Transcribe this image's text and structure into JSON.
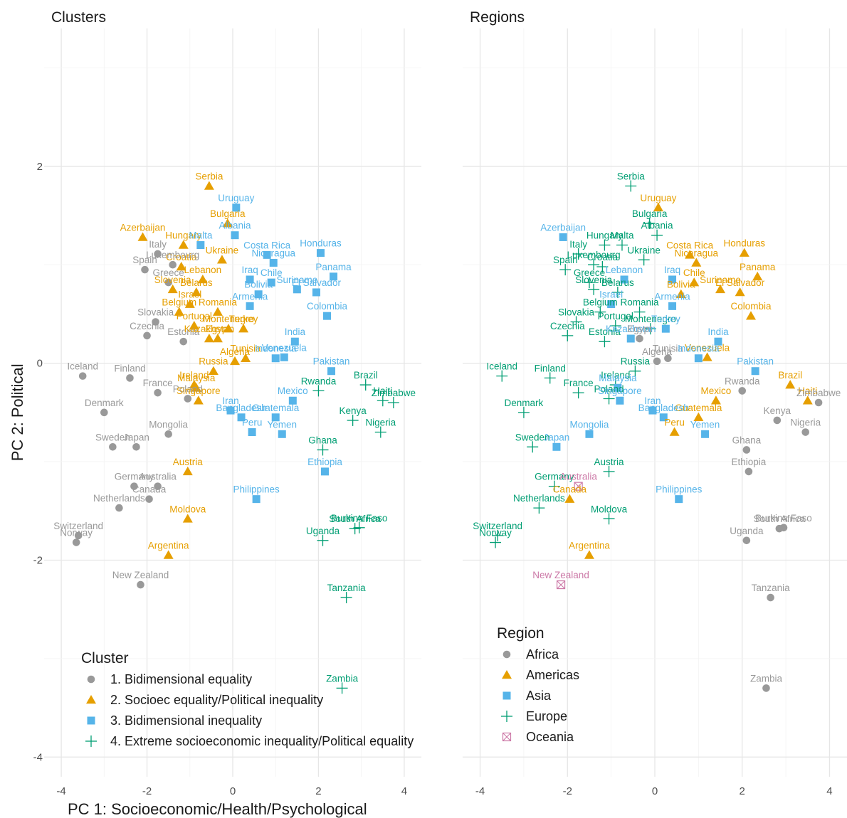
{
  "colors": {
    "Africa": "#999999",
    "Americas": "#E69F00",
    "Asia": "#56B4E9",
    "Europe": "#009E73",
    "Oceania": "#CC79A7",
    "c1": "#999999",
    "c2": "#E69F00",
    "c3": "#56B4E9",
    "c4": "#009E73"
  },
  "chart_data": [
    {
      "type": "scatter",
      "title": "Clusters",
      "xlabel": "PC 1: Socioeconomic/Health/Psychological",
      "ylabel": "PC 2: Political",
      "xlim": [
        -4.4,
        4.4
      ],
      "ylim": [
        -4.2,
        3.4
      ],
      "xticks": [
        "-4",
        "-2",
        "0",
        "2",
        "4"
      ],
      "yticks": [
        "2",
        "0",
        "-2",
        "-4"
      ],
      "grid": true,
      "legend": {
        "title": "Cluster",
        "placement": "bottom-left",
        "entries": [
          {
            "key": "c1",
            "label": "1. Bidimensional equality"
          },
          {
            "key": "c2",
            "label": "2. Socioec equality/Political inequality"
          },
          {
            "key": "c3",
            "label": "3. Bidimensional inequality"
          },
          {
            "key": "c4",
            "label": "4. Extreme socioeconomic inequality/Political equality"
          }
        ]
      }
    },
    {
      "type": "scatter",
      "title": "Regions",
      "xlabel": "",
      "ylabel": "",
      "xlim": [
        -4.4,
        4.4
      ],
      "ylim": [
        -4.2,
        3.4
      ],
      "xticks": [
        "-4",
        "-2",
        "0",
        "2",
        "4"
      ],
      "yticks": [],
      "grid": true,
      "legend": {
        "title": "Region",
        "placement": "bottom-left",
        "entries": [
          {
            "key": "Africa",
            "label": "Africa"
          },
          {
            "key": "Americas",
            "label": "Americas"
          },
          {
            "key": "Asia",
            "label": "Asia"
          },
          {
            "key": "Europe",
            "label": "Europe"
          },
          {
            "key": "Oceania",
            "label": "Oceania"
          }
        ]
      }
    }
  ],
  "points": [
    {
      "name": "Serbia",
      "x": -0.55,
      "y": 1.8,
      "cluster": "c2",
      "region": "Europe"
    },
    {
      "name": "Uruguay",
      "x": 0.08,
      "y": 1.58,
      "cluster": "c3",
      "region": "Americas"
    },
    {
      "name": "Bulgaria",
      "x": -0.12,
      "y": 1.42,
      "cluster": "c2",
      "region": "Europe"
    },
    {
      "name": "Albania",
      "x": 0.05,
      "y": 1.3,
      "cluster": "c3",
      "region": "Europe"
    },
    {
      "name": "Azerbaijan",
      "x": -2.1,
      "y": 1.28,
      "cluster": "c2",
      "region": "Asia"
    },
    {
      "name": "Hungary",
      "x": -1.15,
      "y": 1.2,
      "cluster": "c2",
      "region": "Europe"
    },
    {
      "name": "Malta",
      "x": -0.75,
      "y": 1.2,
      "cluster": "c3",
      "region": "Europe"
    },
    {
      "name": "Costa Rica",
      "x": 0.8,
      "y": 1.1,
      "cluster": "c3",
      "region": "Americas"
    },
    {
      "name": "Honduras",
      "x": 2.05,
      "y": 1.12,
      "cluster": "c3",
      "region": "Americas"
    },
    {
      "name": "Italy",
      "x": -1.75,
      "y": 1.11,
      "cluster": "c1",
      "region": "Europe"
    },
    {
      "name": "Ukraine",
      "x": -0.25,
      "y": 1.05,
      "cluster": "c2",
      "region": "Europe"
    },
    {
      "name": "Nicaragua",
      "x": 0.95,
      "y": 1.02,
      "cluster": "c3",
      "region": "Americas"
    },
    {
      "name": "Croatia",
      "x": -1.2,
      "y": 0.98,
      "cluster": "c2",
      "region": "Europe"
    },
    {
      "name": "Luxembourg",
      "x": -1.4,
      "y": 1.0,
      "cluster": "c1",
      "region": "Europe"
    },
    {
      "name": "Spain",
      "x": -2.05,
      "y": 0.95,
      "cluster": "c1",
      "region": "Europe"
    },
    {
      "name": "Panama",
      "x": 2.35,
      "y": 0.88,
      "cluster": "c3",
      "region": "Americas"
    },
    {
      "name": "Lebanon",
      "x": -0.7,
      "y": 0.85,
      "cluster": "c2",
      "region": "Asia"
    },
    {
      "name": "Iraq",
      "x": 0.4,
      "y": 0.85,
      "cluster": "c3",
      "region": "Asia"
    },
    {
      "name": "Chile",
      "x": 0.9,
      "y": 0.82,
      "cluster": "c3",
      "region": "Americas"
    },
    {
      "name": "Greece",
      "x": -1.5,
      "y": 0.82,
      "cluster": "c1",
      "region": "Europe"
    },
    {
      "name": "El Salvador",
      "x": 1.95,
      "y": 0.72,
      "cluster": "c3",
      "region": "Americas"
    },
    {
      "name": "Suriname",
      "x": 1.5,
      "y": 0.75,
      "cluster": "c3",
      "region": "Americas"
    },
    {
      "name": "Bolivia",
      "x": 0.6,
      "y": 0.7,
      "cluster": "c3",
      "region": "Americas"
    },
    {
      "name": "Slovenia",
      "x": -1.4,
      "y": 0.75,
      "cluster": "c2",
      "region": "Europe"
    },
    {
      "name": "Belarus",
      "x": -0.85,
      "y": 0.72,
      "cluster": "c2",
      "region": "Europe"
    },
    {
      "name": "Israel",
      "x": -1.0,
      "y": 0.6,
      "cluster": "c2",
      "region": "Asia"
    },
    {
      "name": "Belgium",
      "x": -1.25,
      "y": 0.52,
      "cluster": "c2",
      "region": "Europe"
    },
    {
      "name": "Romania",
      "x": -0.35,
      "y": 0.52,
      "cluster": "c2",
      "region": "Europe"
    },
    {
      "name": "Armenia",
      "x": 0.4,
      "y": 0.58,
      "cluster": "c3",
      "region": "Asia"
    },
    {
      "name": "Colombia",
      "x": 2.2,
      "y": 0.48,
      "cluster": "c3",
      "region": "Americas"
    },
    {
      "name": "Slovakia",
      "x": -1.8,
      "y": 0.42,
      "cluster": "c1",
      "region": "Europe"
    },
    {
      "name": "Portugal",
      "x": -0.9,
      "y": 0.38,
      "cluster": "c2",
      "region": "Europe"
    },
    {
      "name": "Montenegro",
      "x": -0.1,
      "y": 0.35,
      "cluster": "c2",
      "region": "Europe"
    },
    {
      "name": "Turkey",
      "x": 0.25,
      "y": 0.35,
      "cluster": "c2",
      "region": "Asia"
    },
    {
      "name": "India",
      "x": 1.45,
      "y": 0.22,
      "cluster": "c3",
      "region": "Asia"
    },
    {
      "name": "Czechia",
      "x": -2.0,
      "y": 0.28,
      "cluster": "c1",
      "region": "Europe"
    },
    {
      "name": "Estonia",
      "x": -1.15,
      "y": 0.22,
      "cluster": "c1",
      "region": "Europe"
    },
    {
      "name": "Kazakhstan",
      "x": -0.55,
      "y": 0.25,
      "cluster": "c2",
      "region": "Asia"
    },
    {
      "name": "Egypt",
      "x": -0.35,
      "y": 0.25,
      "cluster": "c2",
      "region": "Africa"
    },
    {
      "name": "Tunisia",
      "x": 0.3,
      "y": 0.05,
      "cluster": "c2",
      "region": "Africa"
    },
    {
      "name": "Venezuela",
      "x": 1.2,
      "y": 0.06,
      "cluster": "c3",
      "region": "Americas"
    },
    {
      "name": "Algeria",
      "x": 0.05,
      "y": 0.02,
      "cluster": "c2",
      "region": "Africa"
    },
    {
      "name": "Indonesia",
      "x": 1.0,
      "y": 0.05,
      "cluster": "c3",
      "region": "Asia"
    },
    {
      "name": "Pakistan",
      "x": 2.3,
      "y": -0.08,
      "cluster": "c3",
      "region": "Asia"
    },
    {
      "name": "Finland",
      "x": -2.4,
      "y": -0.15,
      "cluster": "c1",
      "region": "Europe"
    },
    {
      "name": "Russia",
      "x": -0.45,
      "y": -0.08,
      "cluster": "c2",
      "region": "Europe"
    },
    {
      "name": "Iceland",
      "x": -3.5,
      "y": -0.13,
      "cluster": "c1",
      "region": "Europe"
    },
    {
      "name": "Ireland",
      "x": -0.9,
      "y": -0.22,
      "cluster": "c2",
      "region": "Europe"
    },
    {
      "name": "Malaysia",
      "x": -0.85,
      "y": -0.25,
      "cluster": "c2",
      "region": "Asia"
    },
    {
      "name": "Brazil",
      "x": 3.1,
      "y": -0.22,
      "cluster": "c4",
      "region": "Americas"
    },
    {
      "name": "Haiti",
      "x": 3.5,
      "y": -0.38,
      "cluster": "c4",
      "region": "Americas"
    },
    {
      "name": "Mexico",
      "x": 1.4,
      "y": -0.38,
      "cluster": "c3",
      "region": "Americas"
    },
    {
      "name": "France",
      "x": -1.75,
      "y": -0.3,
      "cluster": "c1",
      "region": "Europe"
    },
    {
      "name": "Rwanda",
      "x": 2.0,
      "y": -0.28,
      "cluster": "c4",
      "region": "Africa"
    },
    {
      "name": "Poland",
      "x": -1.05,
      "y": -0.36,
      "cluster": "c1",
      "region": "Europe"
    },
    {
      "name": "Denmark",
      "x": -3.0,
      "y": -0.5,
      "cluster": "c1",
      "region": "Europe"
    },
    {
      "name": "Singapore",
      "x": -0.8,
      "y": -0.38,
      "cluster": "c2",
      "region": "Asia"
    },
    {
      "name": "Iran",
      "x": -0.05,
      "y": -0.48,
      "cluster": "c3",
      "region": "Asia"
    },
    {
      "name": "Guatemala",
      "x": 1.0,
      "y": -0.55,
      "cluster": "c3",
      "region": "Americas"
    },
    {
      "name": "Kenya",
      "x": 2.8,
      "y": -0.58,
      "cluster": "c4",
      "region": "Africa"
    },
    {
      "name": "Zimbabwe",
      "x": 3.75,
      "y": -0.4,
      "cluster": "c4",
      "region": "Africa"
    },
    {
      "name": "Bangladesh",
      "x": 0.2,
      "y": -0.55,
      "cluster": "c3",
      "region": "Asia"
    },
    {
      "name": "Yemen",
      "x": 1.15,
      "y": -0.72,
      "cluster": "c3",
      "region": "Asia"
    },
    {
      "name": "Peru",
      "x": 0.45,
      "y": -0.7,
      "cluster": "c3",
      "region": "Americas"
    },
    {
      "name": "Nigeria",
      "x": 3.45,
      "y": -0.7,
      "cluster": "c4",
      "region": "Africa"
    },
    {
      "name": "Mongolia",
      "x": -1.5,
      "y": -0.72,
      "cluster": "c1",
      "region": "Asia"
    },
    {
      "name": "Sweden",
      "x": -2.8,
      "y": -0.85,
      "cluster": "c1",
      "region": "Europe"
    },
    {
      "name": "Japan",
      "x": -2.25,
      "y": -0.85,
      "cluster": "c1",
      "region": "Asia"
    },
    {
      "name": "Ghana",
      "x": 2.1,
      "y": -0.88,
      "cluster": "c4",
      "region": "Africa"
    },
    {
      "name": "Austria",
      "x": -1.05,
      "y": -1.1,
      "cluster": "c2",
      "region": "Europe"
    },
    {
      "name": "Ethiopia",
      "x": 2.15,
      "y": -1.1,
      "cluster": "c3",
      "region": "Africa"
    },
    {
      "name": "Germany",
      "x": -2.3,
      "y": -1.25,
      "cluster": "c1",
      "region": "Europe"
    },
    {
      "name": "Australia",
      "x": -1.75,
      "y": -1.25,
      "cluster": "c1",
      "region": "Oceania"
    },
    {
      "name": "Canada",
      "x": -1.95,
      "y": -1.38,
      "cluster": "c1",
      "region": "Americas"
    },
    {
      "name": "Philippines",
      "x": 0.55,
      "y": -1.38,
      "cluster": "c3",
      "region": "Asia"
    },
    {
      "name": "Netherlands",
      "x": -2.65,
      "y": -1.47,
      "cluster": "c1",
      "region": "Europe"
    },
    {
      "name": "Moldova",
      "x": -1.05,
      "y": -1.58,
      "cluster": "c2",
      "region": "Europe"
    },
    {
      "name": "Burkina Faso",
      "x": 2.95,
      "y": -1.67,
      "cluster": "c4",
      "region": "Africa"
    },
    {
      "name": "Switzerland",
      "x": -3.6,
      "y": -1.75,
      "cluster": "c1",
      "region": "Europe"
    },
    {
      "name": "South Africa",
      "x": 2.85,
      "y": -1.68,
      "cluster": "c4",
      "region": "Africa"
    },
    {
      "name": "Norway",
      "x": -3.65,
      "y": -1.82,
      "cluster": "c1",
      "region": "Europe"
    },
    {
      "name": "Uganda",
      "x": 2.1,
      "y": -1.8,
      "cluster": "c4",
      "region": "Africa"
    },
    {
      "name": "Argentina",
      "x": -1.5,
      "y": -1.95,
      "cluster": "c2",
      "region": "Americas"
    },
    {
      "name": "New Zealand",
      "x": -2.15,
      "y": -2.25,
      "cluster": "c1",
      "region": "Oceania"
    },
    {
      "name": "Tanzania",
      "x": 2.65,
      "y": -2.38,
      "cluster": "c4",
      "region": "Africa"
    },
    {
      "name": "Zambia",
      "x": 2.55,
      "y": -3.3,
      "cluster": "c4",
      "region": "Africa"
    }
  ]
}
